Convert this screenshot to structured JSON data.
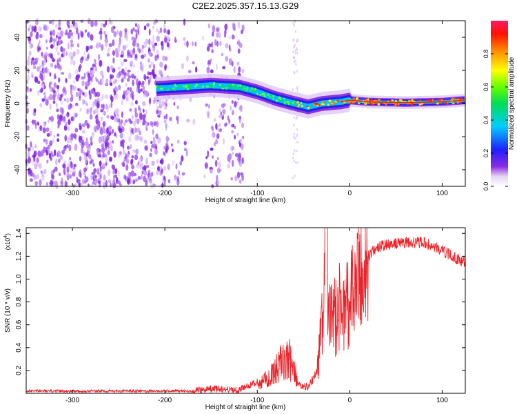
{
  "title": "C2E2.2025.357.15.13.G29",
  "colors": {
    "background": "#ffffff",
    "axis": "#000000",
    "snr_line": "#e8232a",
    "spectrogram_noise": "#8a2be2"
  },
  "chart_data": [
    {
      "type": "heatmap",
      "name": "spectrogram",
      "xlabel": "Height of straight line (km)",
      "ylabel": "Frequency (Hz)",
      "xlim": [
        -350,
        125
      ],
      "ylim": [
        -50,
        50
      ],
      "xticks": [
        -300,
        -200,
        -100,
        0,
        100
      ],
      "yticks": [
        -40,
        -20,
        0,
        20,
        40
      ],
      "xtick_labels": [
        "-300",
        "-200",
        "-100",
        "0",
        "100"
      ],
      "ytick_labels": [
        "-40",
        "-20",
        "0",
        "20",
        "40"
      ],
      "colorbar": {
        "label": "Normalized spectral amplitude",
        "range": [
          0,
          1
        ],
        "ticks": [
          0.0,
          0.2,
          0.4,
          0.6,
          0.8
        ],
        "tick_labels": [
          "0.0",
          "0.2",
          "0.4",
          "0.6",
          "0.8"
        ]
      },
      "signal_trace": {
        "x": [
          -210,
          -180,
          -150,
          -120,
          -100,
          -80,
          -60,
          -45,
          -30,
          -10,
          0,
          20,
          60,
          100,
          125
        ],
        "freq": [
          9,
          10,
          11,
          10,
          7,
          3,
          0,
          -2,
          0,
          1,
          2,
          1,
          0.5,
          1,
          2
        ]
      }
    },
    {
      "type": "line",
      "name": "snr",
      "xlabel": "Height of straight line (km)",
      "ylabel": "SNR (10 * v/v)",
      "y_multiplier": "(x10",
      "y_multiplier_exp": "4",
      "y_multiplier_close": ")",
      "xlim": [
        -350,
        125
      ],
      "ylim": [
        0,
        1.45
      ],
      "xticks": [
        -300,
        -200,
        -100,
        0,
        100
      ],
      "yticks": [
        0.2,
        0.4,
        0.6,
        0.8,
        1.0,
        1.2,
        1.4
      ],
      "xtick_labels": [
        "-300",
        "-200",
        "-100",
        "0",
        "100"
      ],
      "ytick_labels": [
        "0.2",
        "0.4",
        "0.6",
        "0.8",
        "1.0",
        "1.2",
        "1.4"
      ],
      "envelope": {
        "x": [
          -350,
          -170,
          -150,
          -120,
          -100,
          -85,
          -75,
          -65,
          -55,
          -45,
          -35,
          -30,
          -26,
          -24,
          -20,
          -10,
          0,
          10,
          20,
          30,
          40,
          60,
          80,
          100,
          115,
          125
        ],
        "y": [
          0.02,
          0.02,
          0.04,
          0.03,
          0.1,
          0.22,
          0.38,
          0.42,
          0.1,
          0.04,
          0.2,
          0.6,
          1.3,
          0.62,
          0.65,
          0.75,
          0.8,
          1.0,
          1.2,
          1.28,
          1.3,
          1.32,
          1.32,
          1.25,
          1.18,
          1.15
        ]
      }
    }
  ]
}
